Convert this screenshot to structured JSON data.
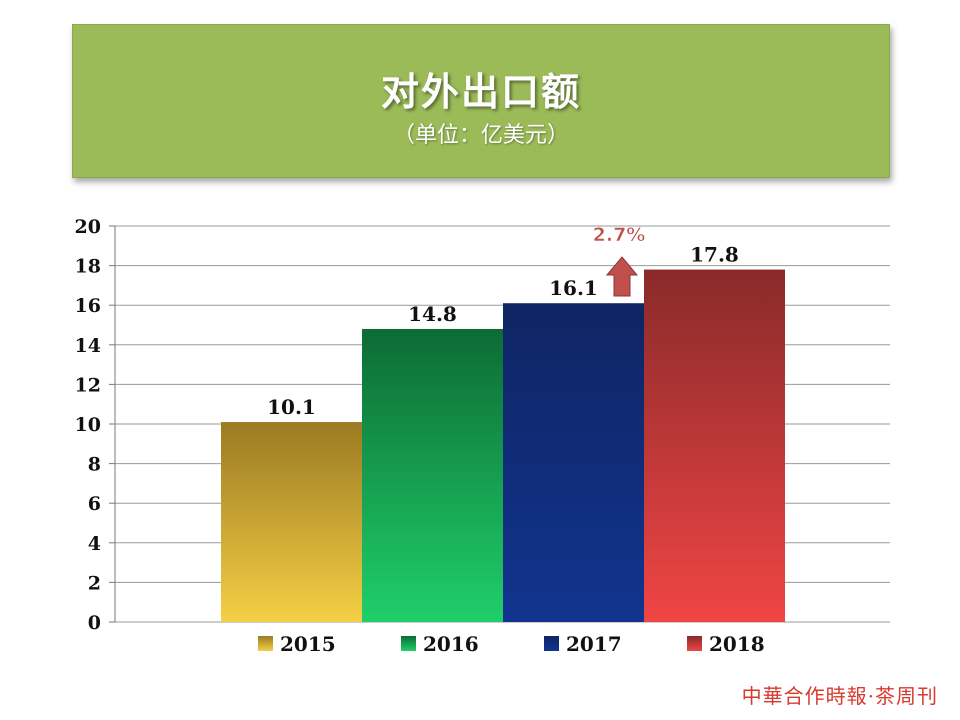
{
  "header": {
    "title": "对外出口额",
    "subtitle": "（单位：亿美元）"
  },
  "chart_data": {
    "type": "bar",
    "categories": [
      "2015",
      "2016",
      "2017",
      "2018"
    ],
    "values": [
      10.1,
      14.8,
      16.1,
      17.8
    ],
    "value_labels": [
      "10.1",
      "14.8",
      "16.1",
      "17.8"
    ],
    "ylim": [
      0,
      20
    ],
    "yticks": [
      0,
      2,
      4,
      6,
      8,
      10,
      12,
      14,
      16,
      18,
      20
    ],
    "grid": true,
    "legend_position": "bottom",
    "colors": {
      "2015": [
        "#9b7a22",
        "#f5cf45"
      ],
      "2016": [
        "#0d6b34",
        "#1fcf6a"
      ],
      "2017": [
        "#0f2563",
        "#12348f"
      ],
      "2018": [
        "#8a2a2a",
        "#f04545"
      ]
    },
    "annotation": {
      "text": "2.7%",
      "icon": "up-arrow-icon",
      "color": "#c0504d"
    }
  },
  "watermark": "中華合作時報·茶周刊"
}
